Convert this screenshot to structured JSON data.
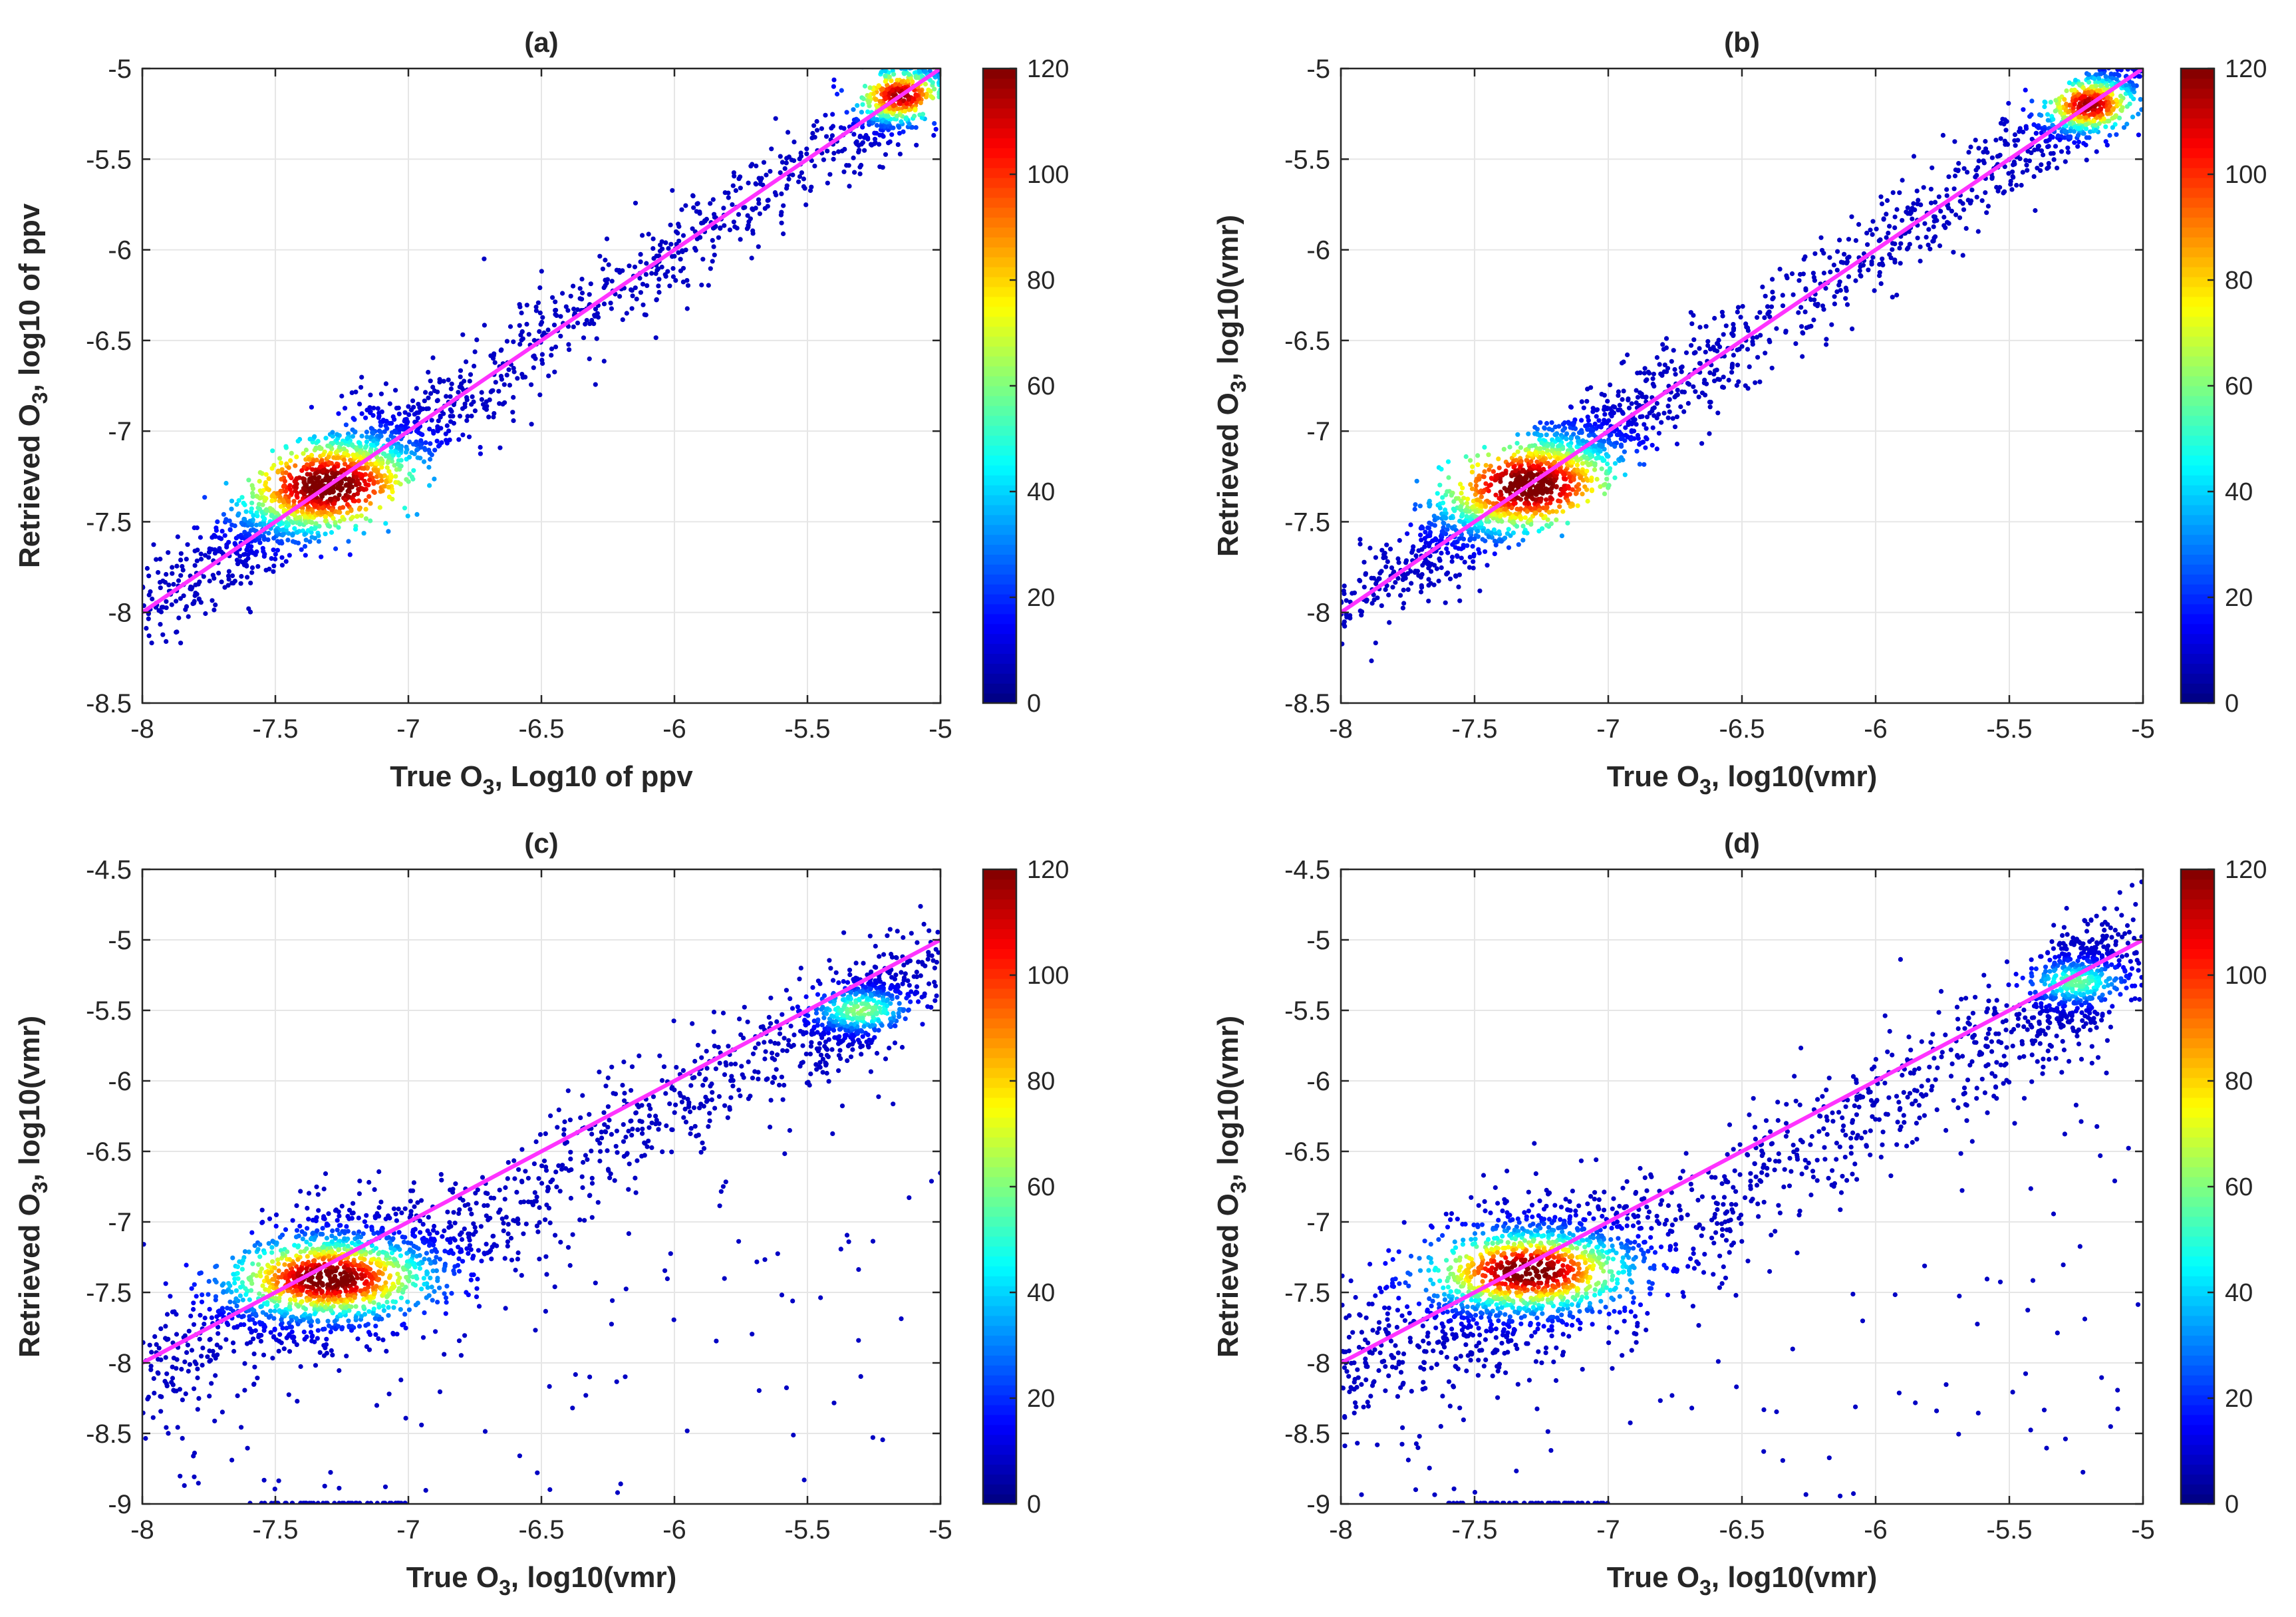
{
  "chart_data": [
    {
      "type": "scatter",
      "panel": "(a)",
      "title": "(a)",
      "xlabel": {
        "pre": "True O",
        "sub": "3",
        "post": ", Log10 of ppv"
      },
      "ylabel": {
        "pre": "Retrieved O",
        "sub": "3",
        "post": ", log10 of ppv"
      },
      "xlim": [
        -8,
        -5
      ],
      "ylim": [
        -8.5,
        -5
      ],
      "xticks": [
        -8,
        -7.5,
        -7,
        -6.5,
        -6,
        -5.5,
        -5
      ],
      "xtick_labels": [
        "-8",
        "-7.5",
        "-7",
        "-6.5",
        "-6",
        "-5.5",
        "-5"
      ],
      "yticks": [
        -8.5,
        -8,
        -7.5,
        -7,
        -6.5,
        -6,
        -5.5,
        -5
      ],
      "ytick_labels": [
        "-8.5",
        "-8",
        "-7.5",
        "-7",
        "-6.5",
        "-6",
        "-5.5",
        "-5"
      ],
      "grid": true,
      "one_to_one_line": {
        "x": [
          -8,
          -5
        ],
        "y": [
          -8,
          -5
        ],
        "color": "#ff33ff"
      },
      "colorbar": {
        "min": 0,
        "max": 120,
        "ticks": [
          0,
          20,
          40,
          60,
          80,
          100,
          120
        ],
        "tick_labels": [
          "0",
          "20",
          "40",
          "60",
          "80",
          "100",
          "120"
        ],
        "colormap": "jet"
      },
      "density_hotspots": [
        {
          "x": -7.3,
          "y": -7.3,
          "density": 120
        },
        {
          "x": -5.15,
          "y": -5.15,
          "density": 110
        }
      ],
      "spread": 0.14,
      "outliers": "few"
    },
    {
      "type": "scatter",
      "panel": "(b)",
      "title": "(b)",
      "xlabel": {
        "pre": "True O",
        "sub": "3",
        "post": ", log10(vmr)"
      },
      "ylabel": {
        "pre": "Retrieved O",
        "sub": "3",
        "post": ", log10(vmr)"
      },
      "xlim": [
        -8,
        -5
      ],
      "ylim": [
        -8.5,
        -5
      ],
      "xticks": [
        -8,
        -7.5,
        -7,
        -6.5,
        -6,
        -5.5,
        -5
      ],
      "xtick_labels": [
        "-8",
        "-7.5",
        "-7",
        "-6.5",
        "-6",
        "-5.5",
        "-5"
      ],
      "yticks": [
        -8.5,
        -8,
        -7.5,
        -7,
        -6.5,
        -6,
        -5.5,
        -5
      ],
      "ytick_labels": [
        "-8.5",
        "-8",
        "-7.5",
        "-7",
        "-6.5",
        "-6",
        "-5.5",
        "-5"
      ],
      "grid": true,
      "one_to_one_line": {
        "x": [
          -8,
          -5
        ],
        "y": [
          -8,
          -5
        ],
        "color": "#ff33ff"
      },
      "colorbar": {
        "min": 0,
        "max": 120,
        "ticks": [
          0,
          20,
          40,
          60,
          80,
          100,
          120
        ],
        "tick_labels": [
          "0",
          "20",
          "40",
          "60",
          "80",
          "100",
          "120"
        ],
        "colormap": "jet"
      },
      "density_hotspots": [
        {
          "x": -7.3,
          "y": -7.3,
          "density": 120
        },
        {
          "x": -5.2,
          "y": -5.2,
          "density": 110
        }
      ],
      "spread": 0.13,
      "outliers": "few"
    },
    {
      "type": "scatter",
      "panel": "(c)",
      "title": "(c)",
      "xlabel": {
        "pre": "True O",
        "sub": "3",
        "post": ", log10(vmr)"
      },
      "ylabel": {
        "pre": "Retrieved O",
        "sub": "3",
        "post": ", log10(vmr)"
      },
      "xlim": [
        -8,
        -5
      ],
      "ylim": [
        -9,
        -4.5
      ],
      "xticks": [
        -8,
        -7.5,
        -7,
        -6.5,
        -6,
        -5.5,
        -5
      ],
      "xtick_labels": [
        "-8",
        "-7.5",
        "-7",
        "-6.5",
        "-6",
        "-5.5",
        "-5"
      ],
      "yticks": [
        -9,
        -8.5,
        -8,
        -7.5,
        -7,
        -6.5,
        -6,
        -5.5,
        -5,
        -4.5
      ],
      "ytick_labels": [
        "-9",
        "-8.5",
        "-8",
        "-7.5",
        "-7",
        "-6.5",
        "-6",
        "-5.5",
        "-5",
        "-4.5"
      ],
      "grid": true,
      "one_to_one_line": {
        "x": [
          -8,
          -5
        ],
        "y": [
          -8,
          -5
        ],
        "color": "#ff33ff"
      },
      "colorbar": {
        "min": 0,
        "max": 120,
        "ticks": [
          0,
          20,
          40,
          60,
          80,
          100,
          120
        ],
        "tick_labels": [
          "0",
          "20",
          "40",
          "60",
          "80",
          "100",
          "120"
        ],
        "colormap": "jet"
      },
      "density_hotspots": [
        {
          "x": -7.3,
          "y": -7.4,
          "density": 120
        },
        {
          "x": -5.3,
          "y": -5.5,
          "density": 55
        }
      ],
      "spread": 0.22,
      "outliers": "many"
    },
    {
      "type": "scatter",
      "panel": "(d)",
      "title": "(d)",
      "xlabel": {
        "pre": "True O",
        "sub": "3",
        "post": ", log10(vmr)"
      },
      "ylabel": {
        "pre": "Retrieved O",
        "sub": "3",
        "post": ", log10(vmr)"
      },
      "xlim": [
        -8,
        -5
      ],
      "ylim": [
        -9,
        -4.5
      ],
      "xticks": [
        -8,
        -7.5,
        -7,
        -6.5,
        -6,
        -5.5,
        -5
      ],
      "xtick_labels": [
        "-8",
        "-7.5",
        "-7",
        "-6.5",
        "-6",
        "-5.5",
        "-5"
      ],
      "yticks": [
        -9,
        -8.5,
        -8,
        -7.5,
        -7,
        -6.5,
        -6,
        -5.5,
        -5,
        -4.5
      ],
      "ytick_labels": [
        "-9",
        "-8.5",
        "-8",
        "-7.5",
        "-7",
        "-6.5",
        "-6",
        "-5.5",
        "-5",
        "-4.5"
      ],
      "grid": true,
      "one_to_one_line": {
        "x": [
          -8,
          -5
        ],
        "y": [
          -8,
          -5
        ],
        "color": "#ff33ff"
      },
      "colorbar": {
        "min": 0,
        "max": 120,
        "ticks": [
          0,
          20,
          40,
          60,
          80,
          100,
          120
        ],
        "tick_labels": [
          "0",
          "20",
          "40",
          "60",
          "80",
          "100",
          "120"
        ],
        "colormap": "jet"
      },
      "density_hotspots": [
        {
          "x": -7.3,
          "y": -7.35,
          "density": 120
        },
        {
          "x": -5.25,
          "y": -5.3,
          "density": 50
        }
      ],
      "spread": 0.25,
      "outliers": "many"
    }
  ]
}
